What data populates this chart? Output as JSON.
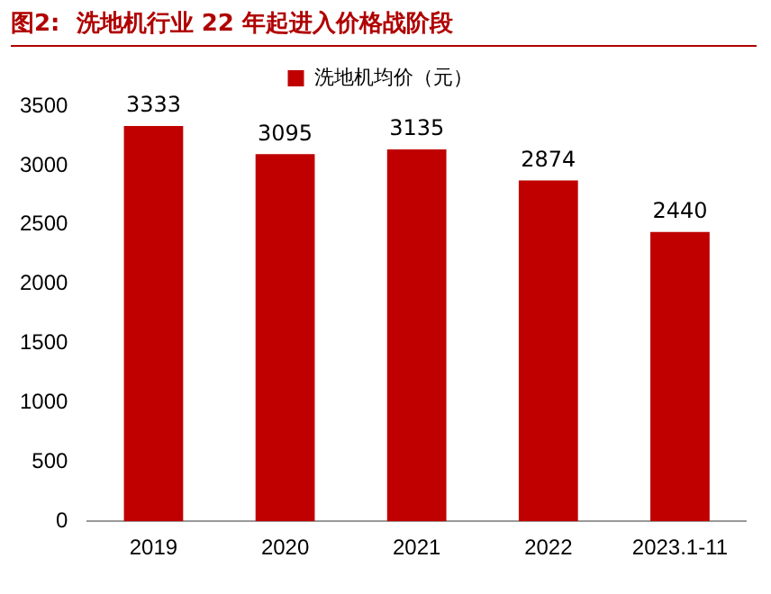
{
  "chart_data": {
    "type": "bar",
    "title": "图2:  洗地机行业 22 年起进入价格战阶段",
    "categories": [
      "2019",
      "2020",
      "2021",
      "2022",
      "2023.1-11"
    ],
    "series": [
      {
        "name": "洗地机均价（元）",
        "color": "#c00000",
        "values": [
          3333,
          3095,
          3135,
          2874,
          2440
        ]
      }
    ],
    "ylim": [
      0,
      3500
    ],
    "yticks": [
      0,
      500,
      1000,
      1500,
      2000,
      2500,
      3000,
      3500
    ],
    "grid": false,
    "legend": "top",
    "data_labels": true
  }
}
